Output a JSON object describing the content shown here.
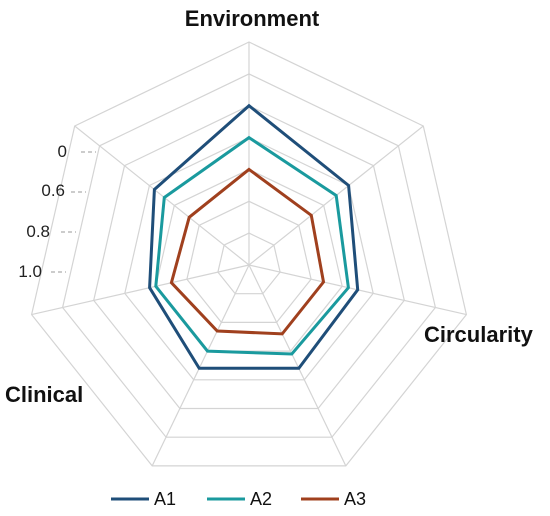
{
  "chart_data": {
    "type": "radar",
    "axes": [
      "Environment",
      "",
      "Circularity",
      "",
      "",
      "Clinical",
      ""
    ],
    "tick_labels": [
      "0",
      "0.6",
      "0.8",
      "1.0"
    ],
    "rings": 7,
    "grid": true,
    "legend_position": "bottom",
    "series": [
      {
        "name": "A1",
        "color": "#1f4e79",
        "values": [
          5.0,
          4.0,
          3.5,
          3.6,
          3.6,
          3.2,
          3.8
        ]
      },
      {
        "name": "A2",
        "color": "#1a9a9e",
        "values": [
          4.0,
          3.5,
          3.2,
          3.1,
          3.0,
          3.0,
          3.4
        ]
      },
      {
        "name": "A3",
        "color": "#a0401e",
        "values": [
          3.0,
          2.5,
          2.4,
          2.4,
          2.3,
          2.5,
          2.4
        ]
      }
    ]
  }
}
